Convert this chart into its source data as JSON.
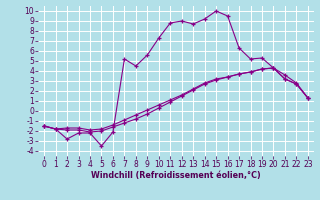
{
  "background_color": "#b2e0e8",
  "grid_color": "#ffffff",
  "line_color": "#880088",
  "xlabel": "Windchill (Refroidissement éolien,°C)",
  "xlim": [
    -0.5,
    23.5
  ],
  "ylim": [
    -4.5,
    10.5
  ],
  "xticks": [
    0,
    1,
    2,
    3,
    4,
    5,
    6,
    7,
    8,
    9,
    10,
    11,
    12,
    13,
    14,
    15,
    16,
    17,
    18,
    19,
    20,
    21,
    22,
    23
  ],
  "yticks": [
    -4,
    -3,
    -2,
    -1,
    0,
    1,
    2,
    3,
    4,
    5,
    6,
    7,
    8,
    9,
    10
  ],
  "line1_x": [
    0,
    1,
    2,
    3,
    4,
    5,
    6,
    7,
    8,
    9,
    10,
    11,
    12,
    13,
    14,
    15,
    16,
    17,
    18,
    19,
    20,
    21,
    22,
    23
  ],
  "line1_y": [
    -1.5,
    -1.8,
    -2.8,
    -2.2,
    -2.2,
    -3.5,
    -2.1,
    5.2,
    4.5,
    5.6,
    7.3,
    8.8,
    9.0,
    8.7,
    9.2,
    10.0,
    9.5,
    6.3,
    5.2,
    5.3,
    4.3,
    3.6,
    2.8,
    1.3
  ],
  "line2_x": [
    0,
    1,
    2,
    3,
    4,
    5,
    6,
    7,
    8,
    9,
    10,
    11,
    12,
    13,
    14,
    15,
    16,
    17,
    18,
    19,
    20,
    21,
    22,
    23
  ],
  "line2_y": [
    -1.5,
    -1.8,
    -1.9,
    -1.9,
    -2.1,
    -2.0,
    -1.6,
    -1.2,
    -0.8,
    -0.3,
    0.3,
    0.9,
    1.5,
    2.1,
    2.7,
    3.1,
    3.4,
    3.7,
    3.9,
    4.2,
    4.3,
    3.2,
    2.7,
    1.3
  ],
  "line3_x": [
    0,
    1,
    2,
    3,
    4,
    5,
    6,
    7,
    8,
    9,
    10,
    11,
    12,
    13,
    14,
    15,
    16,
    17,
    18,
    19,
    20,
    21,
    22,
    23
  ],
  "line3_y": [
    -1.5,
    -1.8,
    -1.7,
    -1.7,
    -1.9,
    -1.8,
    -1.4,
    -0.9,
    -0.4,
    0.1,
    0.6,
    1.1,
    1.6,
    2.2,
    2.8,
    3.2,
    3.4,
    3.7,
    3.9,
    4.2,
    4.3,
    3.2,
    2.7,
    1.3
  ],
  "tick_color": "#550055",
  "tick_fontsize": 5.5,
  "xlabel_fontsize": 5.8,
  "linewidth": 0.8,
  "markersize": 2.2
}
